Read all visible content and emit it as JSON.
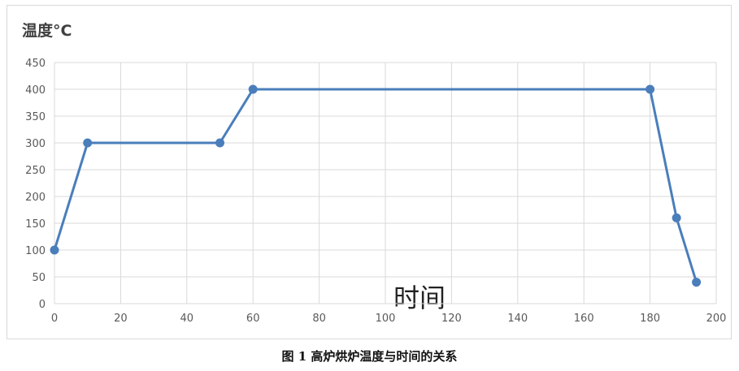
{
  "chart_data": {
    "type": "line",
    "ylabel": "温度°C",
    "xlabel": "时间",
    "caption": "图 1  高炉烘炉温度与时间的关系",
    "xlim": [
      0,
      200
    ],
    "ylim": [
      0,
      450
    ],
    "xticks": [
      0,
      20,
      40,
      60,
      80,
      100,
      120,
      140,
      160,
      180,
      200
    ],
    "yticks": [
      0,
      50,
      100,
      150,
      200,
      250,
      300,
      350,
      400,
      450
    ],
    "grid": true,
    "series": [
      {
        "color": "#4a7ebb",
        "points": [
          {
            "x": 0,
            "y": 100
          },
          {
            "x": 10,
            "y": 300
          },
          {
            "x": 50,
            "y": 300
          },
          {
            "x": 60,
            "y": 400
          },
          {
            "x": 180,
            "y": 400
          },
          {
            "x": 188,
            "y": 160
          },
          {
            "x": 194,
            "y": 40
          }
        ]
      }
    ]
  }
}
